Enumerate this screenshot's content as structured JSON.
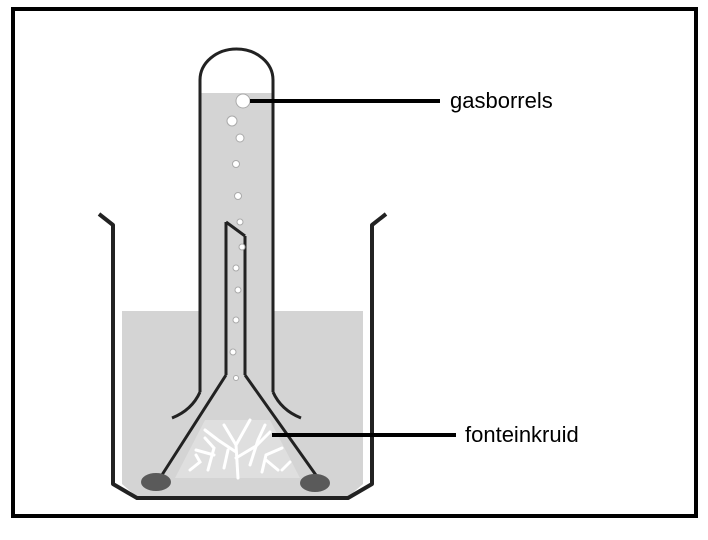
{
  "labels": {
    "gas_bubbles": "gasborrels",
    "plant": "fonteinkruid"
  },
  "colors": {
    "frame": "#000000",
    "water": "#d4d4d4",
    "glass": "#222222",
    "plant": "#ffffff",
    "stone": "#5a5a5a"
  }
}
